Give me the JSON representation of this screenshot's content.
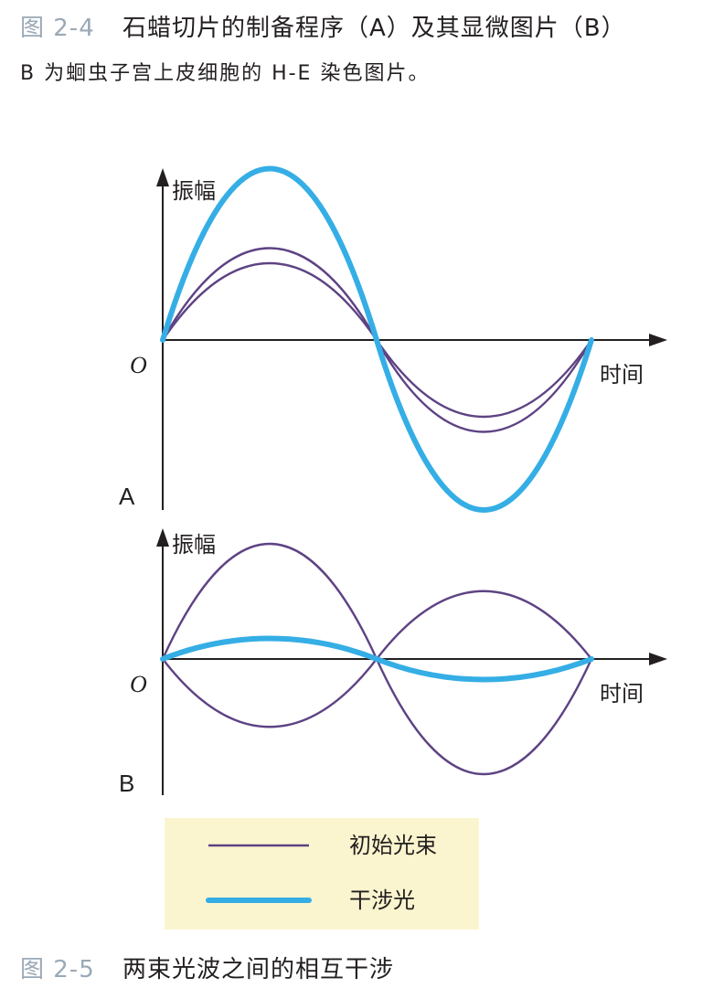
{
  "caption_top": {
    "number": "图 2-4",
    "text": "石蜡切片的制备程序（A）及其显微图片（B）"
  },
  "caption_note": "B 为蛔虫子宫上皮细胞的 H-E 染色图片。",
  "caption_bottom": {
    "number": "图 2-5",
    "text": "两束光波之间的相互干涉"
  },
  "panel_a": {
    "panel_label": "A",
    "y_label": "振幅",
    "x_label": "时间",
    "origin": "O"
  },
  "panel_b": {
    "panel_label": "B",
    "y_label": "振幅",
    "x_label": "时间",
    "origin": "O"
  },
  "legend": {
    "initial": "初始光束",
    "interfered": "干涉光"
  },
  "colors": {
    "initial_beam": "#5e4384",
    "interfered_beam": "#35aee5",
    "legend_bg": "#fbf5cf"
  }
}
